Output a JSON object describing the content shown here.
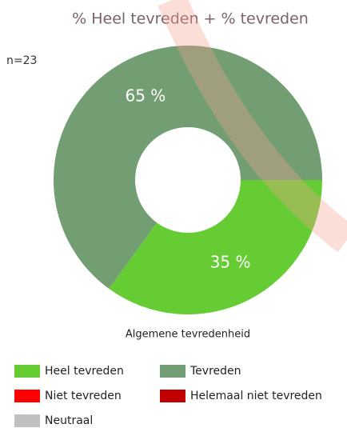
{
  "chart_data": {
    "type": "donut",
    "title": "% Heel tevreden + % tevreden",
    "subtitle": "n=23",
    "x_label": "Algemene tevredenheid",
    "categories": [
      "Heel tevreden",
      "Tevreden",
      "Niet tevreden",
      "Helemaal niet tevreden",
      "Neutraal"
    ],
    "values": [
      35,
      65,
      0,
      0,
      0
    ],
    "value_labels": [
      "35 %",
      "65 %",
      null,
      null,
      null
    ],
    "colors": [
      "#66cc33",
      "#739e73",
      "#ff0000",
      "#c00000",
      "#c0c0c0"
    ]
  }
}
